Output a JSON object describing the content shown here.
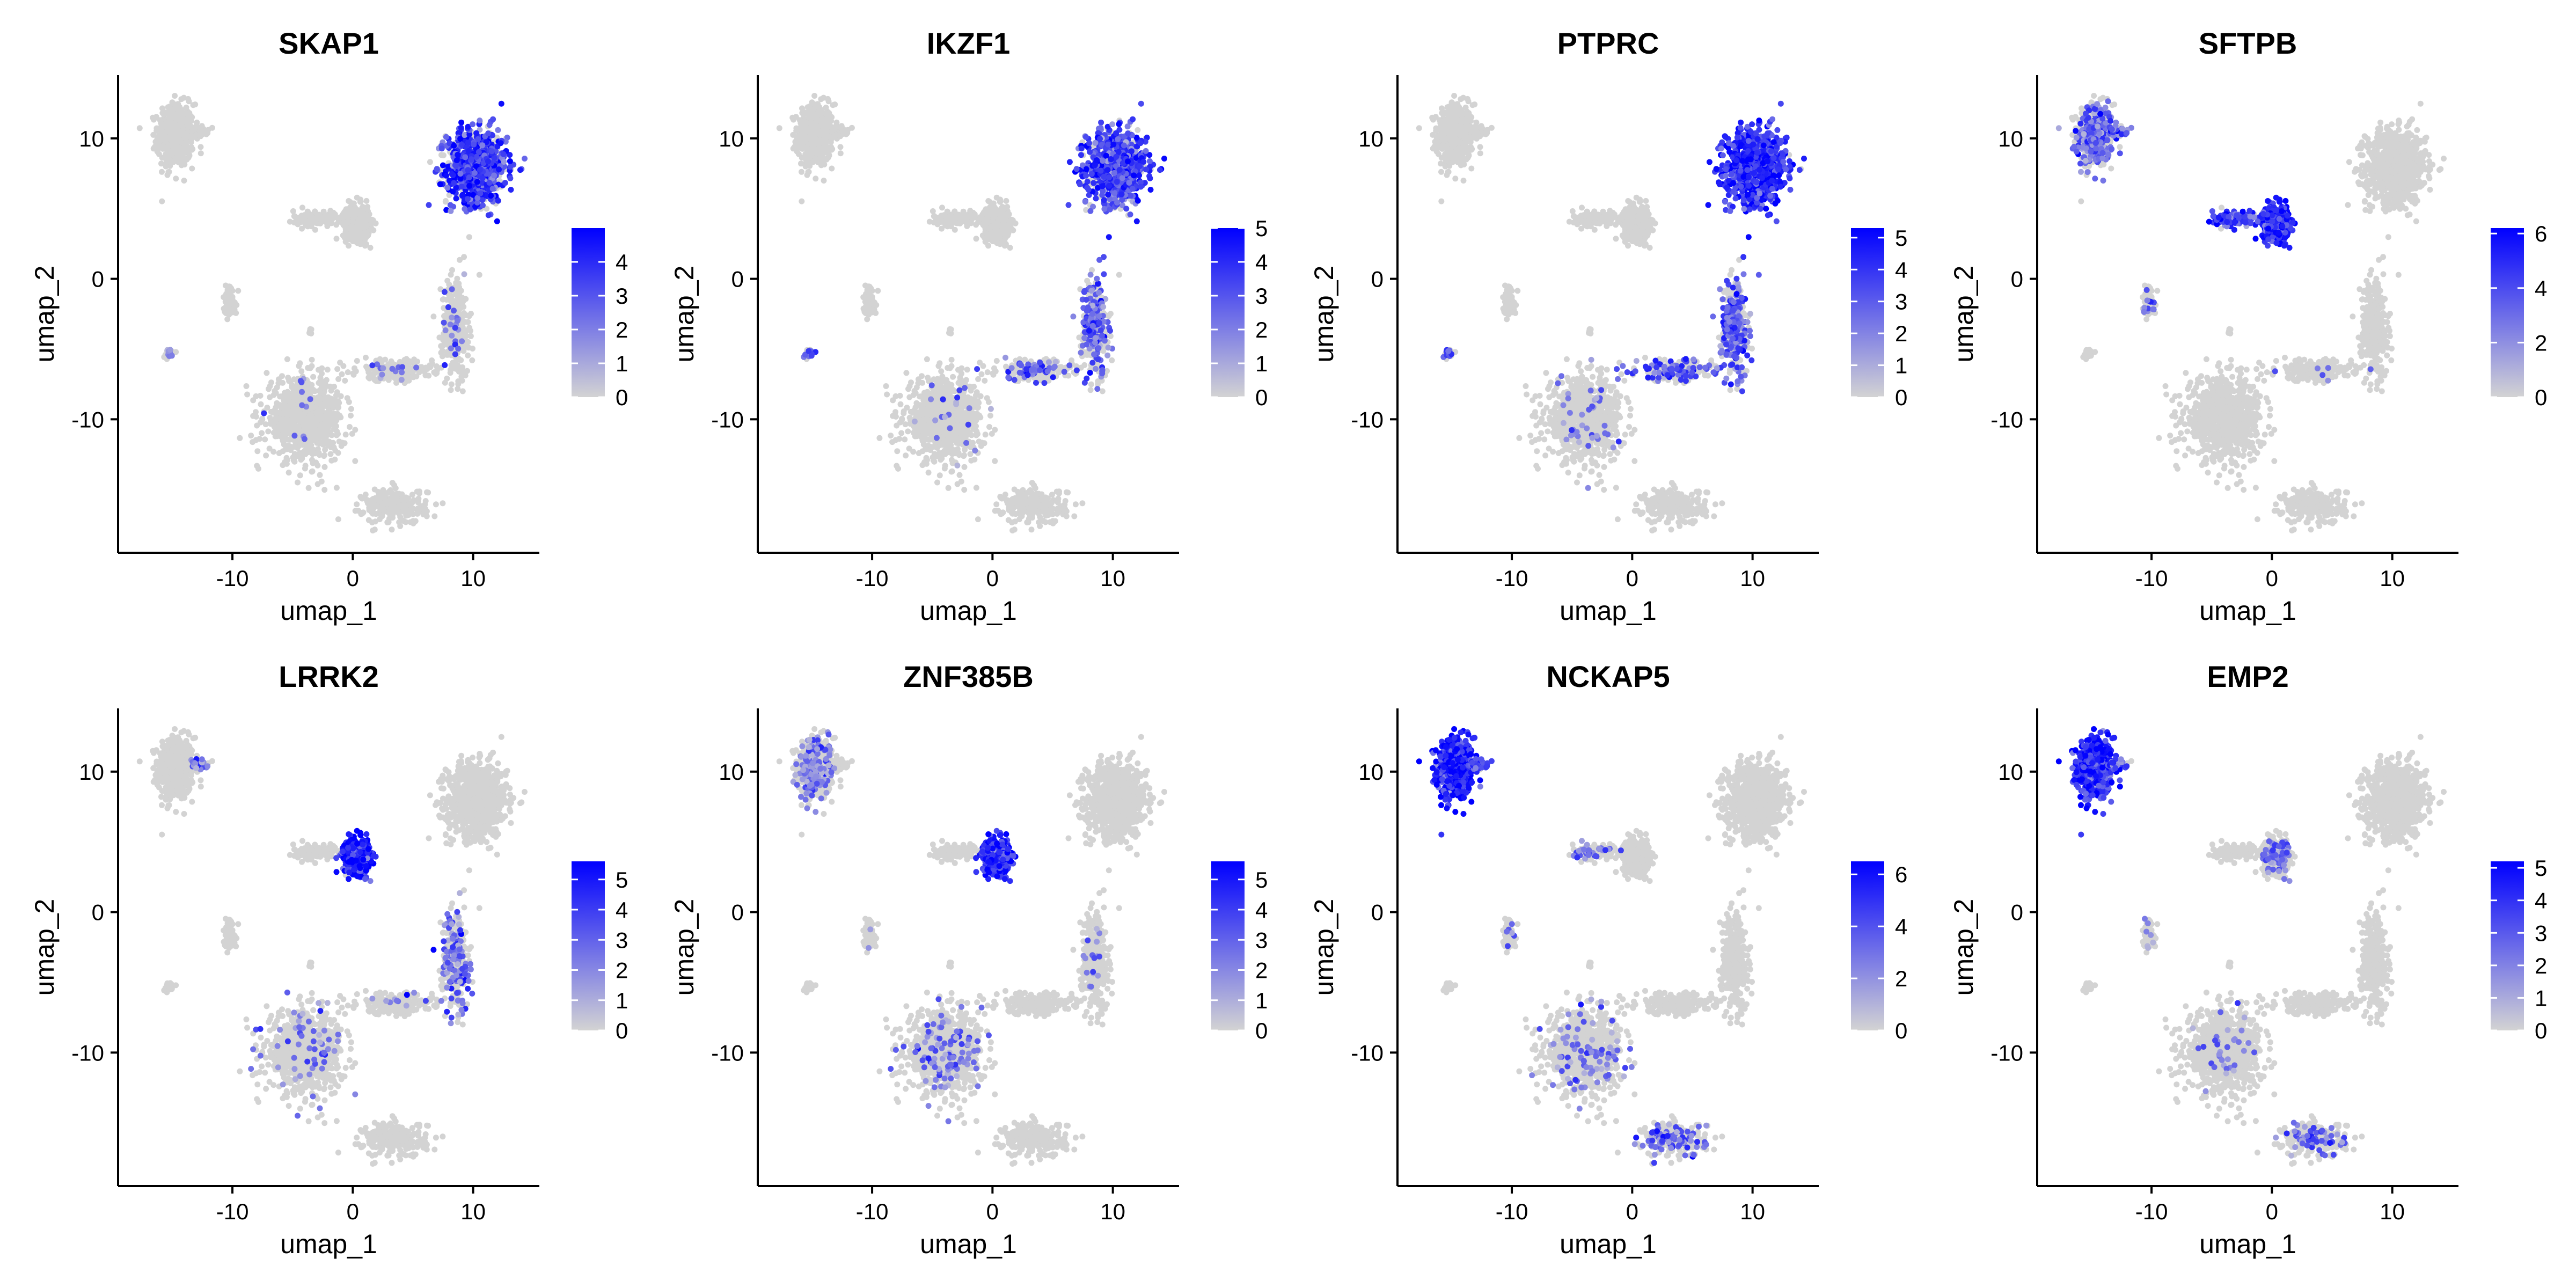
{
  "colors": {
    "low": "#d3d3d3",
    "high": "#0000ff",
    "axis": "#000000"
  },
  "chart_data": [
    {
      "type": "scatter",
      "title": "SKAP1",
      "xlabel": "umap_1",
      "ylabel": "umap_2",
      "xlim": [
        -19.5,
        15.5
      ],
      "ylim": [
        -19.5,
        14.5
      ],
      "xticks": [
        "-10",
        "0",
        "10"
      ],
      "yticks": [
        "10",
        "0",
        "-10"
      ],
      "legend": {
        "position": "right",
        "min": 0,
        "max": 5,
        "ticks": [
          "4",
          "3",
          "2",
          "1",
          "0"
        ]
      },
      "high_expression_clusters": [
        "upper-right (x≈10, y≈8)"
      ]
    },
    {
      "type": "scatter",
      "title": "IKZF1",
      "xlabel": "umap_1",
      "ylabel": "umap_2",
      "xlim": [
        -19.5,
        15.5
      ],
      "ylim": [
        -19.5,
        14.5
      ],
      "xticks": [
        "-10",
        "0",
        "10"
      ],
      "yticks": [
        "10",
        "0",
        "-10"
      ],
      "legend": {
        "position": "right",
        "min": 0,
        "max": 5,
        "ticks": [
          "5",
          "4",
          "3",
          "2",
          "1",
          "0"
        ]
      },
      "high_expression_clusters": [
        "upper-right (x≈10, y≈8)",
        "right stream (x≈8, y≈-3)"
      ]
    },
    {
      "type": "scatter",
      "title": "PTPRC",
      "xlabel": "umap_1",
      "ylabel": "umap_2",
      "xlim": [
        -19.5,
        15.5
      ],
      "ylim": [
        -19.5,
        14.5
      ],
      "xticks": [
        "-10",
        "0",
        "10"
      ],
      "yticks": [
        "10",
        "0",
        "-10"
      ],
      "legend": {
        "position": "right",
        "min": 0,
        "max": 5.3,
        "ticks": [
          "5",
          "4",
          "3",
          "2",
          "1",
          "0"
        ]
      },
      "high_expression_clusters": [
        "upper-right (x≈10, y≈8)",
        "right stream (x≈8, y≈-3)"
      ]
    },
    {
      "type": "scatter",
      "title": "SFTPB",
      "xlabel": "umap_1",
      "ylabel": "umap_2",
      "xlim": [
        -19.5,
        15.5
      ],
      "ylim": [
        -19.5,
        14.5
      ],
      "xticks": [
        "-10",
        "0",
        "10"
      ],
      "yticks": [
        "10",
        "0",
        "-10"
      ],
      "legend": {
        "position": "right",
        "min": 0,
        "max": 6.2,
        "ticks": [
          "6",
          "4",
          "2",
          "0"
        ]
      },
      "high_expression_clusters": [
        "center (x≈0, y≈4)",
        "upper-left (x≈-15, y≈10)"
      ]
    },
    {
      "type": "scatter",
      "title": "LRRK2",
      "xlabel": "umap_1",
      "ylabel": "umap_2",
      "xlim": [
        -19.5,
        15.5
      ],
      "ylim": [
        -19.5,
        14.5
      ],
      "xticks": [
        "-10",
        "0",
        "10"
      ],
      "yticks": [
        "10",
        "0",
        "-10"
      ],
      "legend": {
        "position": "right",
        "min": 0,
        "max": 5.6,
        "ticks": [
          "5",
          "4",
          "3",
          "2",
          "1",
          "0"
        ]
      },
      "high_expression_clusters": [
        "center (x≈0, y≈4)"
      ]
    },
    {
      "type": "scatter",
      "title": "ZNF385B",
      "xlabel": "umap_1",
      "ylabel": "umap_2",
      "xlim": [
        -19.5,
        15.5
      ],
      "ylim": [
        -19.5,
        14.5
      ],
      "xticks": [
        "-10",
        "0",
        "10"
      ],
      "yticks": [
        "10",
        "0",
        "-10"
      ],
      "legend": {
        "position": "right",
        "min": 0,
        "max": 5.6,
        "ticks": [
          "5",
          "4",
          "3",
          "2",
          "1",
          "0"
        ]
      },
      "high_expression_clusters": [
        "center (x≈0, y≈4)",
        "upper-left (x≈-15, y≈10)"
      ]
    },
    {
      "type": "scatter",
      "title": "NCKAP5",
      "xlabel": "umap_1",
      "ylabel": "umap_2",
      "xlim": [
        -19.5,
        15.5
      ],
      "ylim": [
        -19.5,
        14.5
      ],
      "xticks": [
        "-10",
        "0",
        "10"
      ],
      "yticks": [
        "10",
        "0",
        "-10"
      ],
      "legend": {
        "position": "right",
        "min": 0,
        "max": 6.5,
        "ticks": [
          "6",
          "4",
          "2",
          "0"
        ]
      },
      "high_expression_clusters": [
        "upper-left (x≈-15, y≈10)"
      ]
    },
    {
      "type": "scatter",
      "title": "EMP2",
      "xlabel": "umap_1",
      "ylabel": "umap_2",
      "xlim": [
        -19.5,
        15.5
      ],
      "ylim": [
        -19.5,
        14.5
      ],
      "xticks": [
        "-10",
        "0",
        "10"
      ],
      "yticks": [
        "10",
        "0",
        "-10"
      ],
      "legend": {
        "position": "right",
        "min": 0,
        "max": 5.2,
        "ticks": [
          "5",
          "4",
          "3",
          "2",
          "1",
          "0"
        ]
      },
      "high_expression_clusters": [
        "upper-left (x≈-15, y≈10)"
      ]
    }
  ]
}
